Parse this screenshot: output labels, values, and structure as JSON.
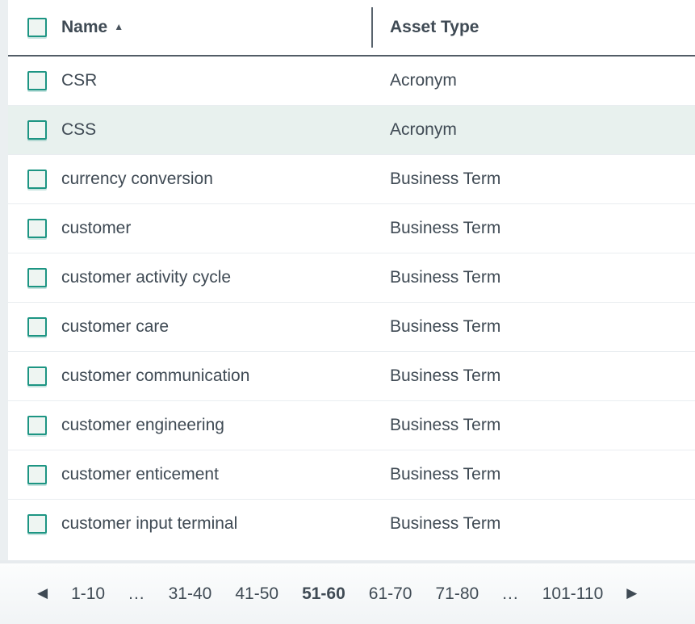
{
  "table": {
    "select_all_checked": false,
    "columns": {
      "name": {
        "label": "Name",
        "sort": "ascending"
      },
      "type": {
        "label": "Asset Type"
      }
    },
    "rows": [
      {
        "name": "CSR",
        "type": "Acronym",
        "highlighted": false
      },
      {
        "name": "CSS",
        "type": "Acronym",
        "highlighted": true
      },
      {
        "name": "currency conversion",
        "type": "Business Term",
        "highlighted": false
      },
      {
        "name": "customer",
        "type": "Business Term",
        "highlighted": false
      },
      {
        "name": "customer activity cycle",
        "type": "Business Term",
        "highlighted": false
      },
      {
        "name": "customer care",
        "type": "Business Term",
        "highlighted": false
      },
      {
        "name": "customer communication",
        "type": "Business Term",
        "highlighted": false
      },
      {
        "name": "customer engineering",
        "type": "Business Term",
        "highlighted": false
      },
      {
        "name": "customer enticement",
        "type": "Business Term",
        "highlighted": false
      },
      {
        "name": "customer input terminal",
        "type": "Business Term",
        "highlighted": false
      }
    ]
  },
  "pagination": {
    "prev_icon": "◀",
    "next_icon": "▶",
    "items": [
      {
        "label": "1-10",
        "current": false
      },
      {
        "label": "...",
        "current": false
      },
      {
        "label": "31-40",
        "current": false
      },
      {
        "label": "41-50",
        "current": false
      },
      {
        "label": "51-60",
        "current": true
      },
      {
        "label": "61-70",
        "current": false
      },
      {
        "label": "71-80",
        "current": false
      },
      {
        "label": "...",
        "current": false
      },
      {
        "label": "101-110",
        "current": false
      }
    ]
  },
  "icons": {
    "sort_ascending": "▲"
  },
  "colors": {
    "accent_teal": "#1d9583",
    "row_highlight": "#e8f1ee",
    "text": "#3f4a54",
    "header_underline": "#525c66",
    "row_border": "#e9edf0",
    "left_strip": "#ebeff1",
    "footer_band": "#e7ebee"
  }
}
